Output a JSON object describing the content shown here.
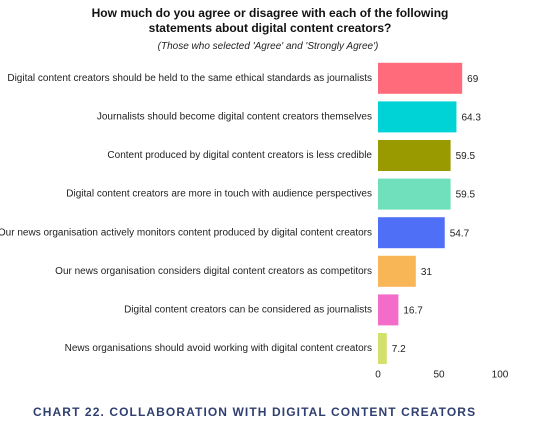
{
  "chart_data": {
    "type": "barh",
    "title": "How much do you agree or disagree with each of the following statements about digital content creators?",
    "subtitle": "(Those who selected 'Agree' and 'Strongly Agree')",
    "caption": "CHART 22. COLLABORATION WITH DIGITAL CONTENT CREATORS",
    "categories": [
      "Digital content creators should be held to the same ethical standards as journalists",
      "Journalists should become digital content creators themselves",
      "Content produced by digital content creators is less credible",
      "Digital content creators are more in touch with audience perspectives",
      "Our news organisation actively monitors content produced by digital content creators",
      "Our news organisation considers digital content creators as competitors",
      "Digital content creators can be considered as journalists",
      "News organisations should avoid working with digital content creators"
    ],
    "values": [
      69,
      64.3,
      59.5,
      59.5,
      54.7,
      31,
      16.7,
      7.2
    ],
    "colors": [
      "#ff6b7b",
      "#00d3d6",
      "#999900",
      "#6fe0bb",
      "#4f70f6",
      "#f8b656",
      "#f46cc9",
      "#d3e06b"
    ],
    "xlim": [
      0,
      100
    ],
    "xticks": [
      0,
      50,
      100
    ],
    "grid": false
  }
}
